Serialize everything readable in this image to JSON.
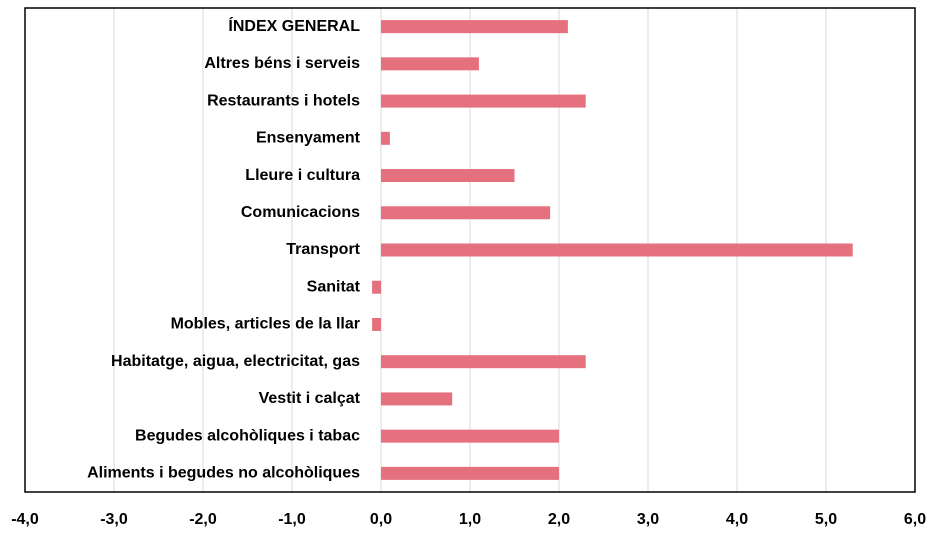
{
  "chart_data": {
    "type": "bar",
    "orientation": "horizontal",
    "categories": [
      "ÍNDEX GENERAL",
      "Altres béns i serveis",
      "Restaurants i hotels",
      "Ensenyament",
      "Lleure i cultura",
      "Comunicacions",
      "Transport",
      "Sanitat",
      "Mobles, articles de la llar",
      "Habitatge, aigua, electricitat, gas",
      "Vestit i calçat",
      "Begudes alcohòliques i tabac",
      "Aliments i begudes no alcohòliques"
    ],
    "values": [
      2.1,
      1.1,
      2.3,
      0.1,
      1.5,
      1.9,
      5.3,
      -0.1,
      -0.1,
      2.3,
      0.8,
      2.0,
      2.0
    ],
    "color": "#e5717f",
    "xlim": [
      -4,
      6
    ],
    "xticks": [
      {
        "value": -4,
        "label": "-4,0"
      },
      {
        "value": -3,
        "label": "-3,0"
      },
      {
        "value": -2,
        "label": "-2,0"
      },
      {
        "value": -1,
        "label": "-1,0"
      },
      {
        "value": 0,
        "label": "0,0"
      },
      {
        "value": 1,
        "label": "1,0"
      },
      {
        "value": 2,
        "label": "2,0"
      },
      {
        "value": 3,
        "label": "3,0"
      },
      {
        "value": 4,
        "label": "4,0"
      },
      {
        "value": 5,
        "label": "5,0"
      },
      {
        "value": 6,
        "label": "6,0"
      }
    ],
    "grid": true
  }
}
